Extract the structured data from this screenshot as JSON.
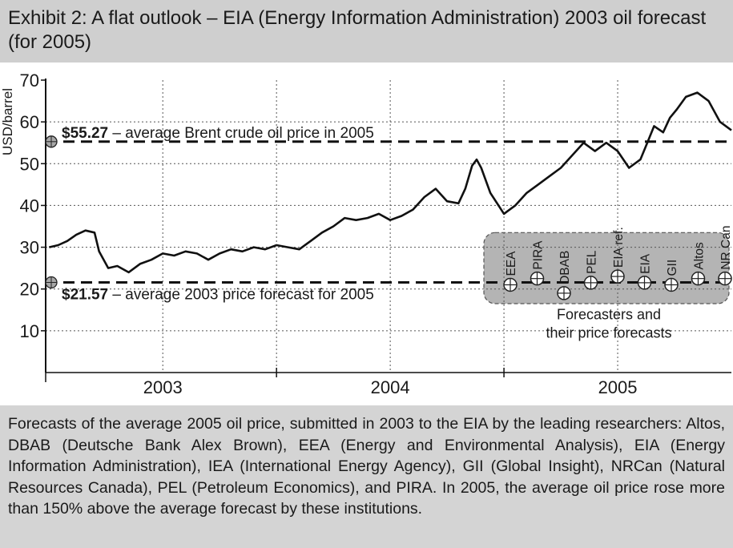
{
  "title": "Exhibit 2: A flat outlook – EIA (Energy Information Administration) 2003 oil forecast (for 2005)",
  "caption": "Forecasts of the average 2005 oil price, submitted in 2003 to the EIA  by the leading researchers: Altos, DBAB (Deutsche Bank Alex Brown), EEA (Energy and Environmental Analysis), EIA (Energy Information Administration), IEA (International Energy Agency), GII (Global Insight), NRCan (Natural Resources Canada), PEL (Petroleum Economics), and PIRA. In 2005, the average oil price rose more than 150% above the average forecast by these institutions.",
  "chart_data": {
    "type": "line",
    "ylabel": "USD/barrel",
    "ylim": [
      0,
      70
    ],
    "y_ticks": [
      "10",
      "20",
      "30",
      "40",
      "50",
      "60",
      "70"
    ],
    "x_categories": [
      "2003",
      "2004",
      "2005"
    ],
    "grid": true,
    "series": [
      {
        "x": [
          2003.0,
          2003.04,
          2003.08,
          2003.12,
          2003.16,
          2003.2,
          2003.22,
          2003.26,
          2003.3,
          2003.35,
          2003.4,
          2003.45,
          2003.5,
          2003.55,
          2003.6,
          2003.65,
          2003.7,
          2003.75,
          2003.8,
          2003.85,
          2003.9,
          2003.95,
          2004.0,
          2004.05,
          2004.1,
          2004.15,
          2004.2,
          2004.25,
          2004.3,
          2004.35,
          2004.4,
          2004.45,
          2004.5,
          2004.55,
          2004.6,
          2004.65,
          2004.7,
          2004.75,
          2004.8,
          2004.83,
          2004.86,
          2004.88,
          2004.9,
          2004.94,
          2005.0,
          2005.05,
          2005.1,
          2005.15,
          2005.2,
          2005.25,
          2005.3,
          2005.35,
          2005.4,
          2005.45,
          2005.5,
          2005.55,
          2005.6,
          2005.63,
          2005.66,
          2005.7,
          2005.73,
          2005.76,
          2005.8,
          2005.85,
          2005.9,
          2005.95,
          2006.0
        ],
        "values": [
          30.0,
          30.5,
          31.5,
          33.0,
          34.0,
          33.5,
          29.0,
          25.0,
          25.5,
          24.0,
          26.0,
          27.0,
          28.5,
          28.0,
          29.0,
          28.5,
          27.0,
          28.5,
          29.5,
          29.0,
          30.0,
          29.5,
          30.5,
          30.0,
          29.5,
          31.5,
          33.5,
          35.0,
          37.0,
          36.5,
          37.0,
          38.0,
          36.5,
          37.5,
          39.0,
          42.0,
          44.0,
          41.0,
          40.5,
          44.0,
          49.5,
          51.0,
          49.0,
          43.0,
          38.0,
          40.0,
          43.0,
          45.0,
          47.0,
          49.0,
          52.0,
          55.0,
          53.0,
          55.0,
          53.0,
          49.0,
          51.0,
          55.0,
          59.0,
          57.5,
          61.0,
          63.0,
          66.0,
          67.0,
          65.0,
          60.0,
          58.0
        ]
      }
    ],
    "reference_lines": [
      {
        "value": 55.27,
        "bold_text": "$55.27",
        "text": " – average Brent crude oil price in 2005"
      },
      {
        "value": 21.57,
        "bold_text": "$21.57",
        "text": " – average 2003 price forecast for 2005"
      }
    ],
    "forecasts": [
      {
        "name": "EEA",
        "value": 21.0
      },
      {
        "name": "PIRA",
        "value": 22.5
      },
      {
        "name": "DBAB",
        "value": 19.0
      },
      {
        "name": "PEL",
        "value": 21.5
      },
      {
        "name": "EIA ref.",
        "value": 23.0
      },
      {
        "name": "EIA",
        "value": 21.5
      },
      {
        "name": "GII",
        "value": 21.0
      },
      {
        "name": "Altos",
        "value": 22.5
      },
      {
        "name": "NR Can",
        "value": 22.5
      }
    ],
    "forecast_box_caption": [
      "Forecasters and",
      "their price forecasts"
    ]
  }
}
